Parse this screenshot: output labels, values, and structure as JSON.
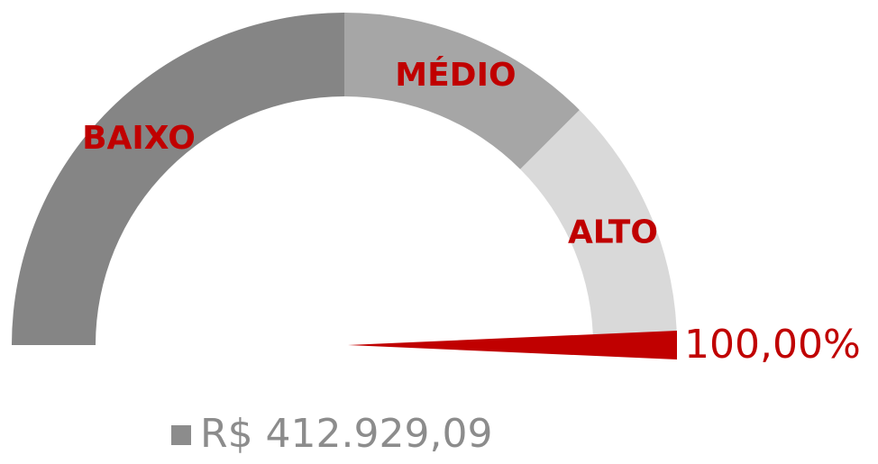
{
  "chart_data": {
    "type": "gauge",
    "range": [
      0,
      100
    ],
    "bands": [
      {
        "name": "BAIXO",
        "from": 0,
        "to": 50,
        "color": "#858585"
      },
      {
        "name": "MÉDIO",
        "from": 50,
        "to": 75,
        "color": "#a6a6a6"
      },
      {
        "name": "ALTO",
        "from": 75,
        "to": 100,
        "color": "#d9d9d9"
      }
    ],
    "value": 100,
    "value_label": "100,00%",
    "needle_color": "#c00000",
    "label_color": "#c00000",
    "legend": {
      "label": "R$ 412.929,09",
      "color": "#8c8c8c"
    }
  }
}
